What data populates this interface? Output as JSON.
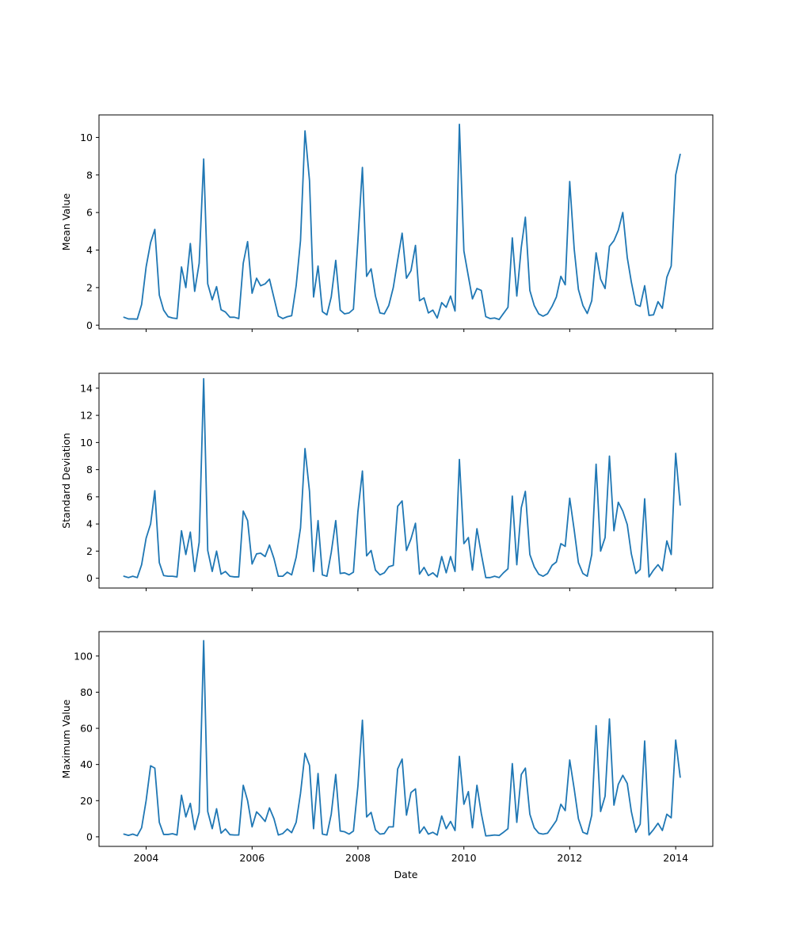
{
  "chart_data": [
    {
      "type": "line",
      "xlabel": "",
      "ylabel": "Mean Value",
      "ylim": [
        -0.2,
        11.2
      ],
      "xlim": [
        "2003-02-10",
        "2014-09-14"
      ],
      "yticks": [
        0,
        2,
        4,
        6,
        8,
        10
      ],
      "show_xtick_labels": false,
      "color": "#1f77b4",
      "x": [
        "2003-08-01",
        "2003-09-01",
        "2003-10-01",
        "2003-11-01",
        "2003-12-01",
        "2004-01-01",
        "2004-02-01",
        "2004-03-01",
        "2004-04-01",
        "2004-05-01",
        "2004-06-01",
        "2004-07-01",
        "2004-08-01",
        "2004-09-01",
        "2004-10-01",
        "2004-11-01",
        "2004-12-01",
        "2005-01-01",
        "2005-02-01",
        "2005-03-01",
        "2005-04-01",
        "2005-05-01",
        "2005-06-01",
        "2005-07-01",
        "2005-08-01",
        "2005-09-01",
        "2005-10-01",
        "2005-11-01",
        "2005-12-01",
        "2006-01-01",
        "2006-02-01",
        "2006-03-01",
        "2006-04-01",
        "2006-05-01",
        "2006-06-01",
        "2006-07-01",
        "2006-08-01",
        "2006-09-01",
        "2006-10-01",
        "2006-11-01",
        "2006-12-01",
        "2007-01-01",
        "2007-02-01",
        "2007-03-01",
        "2007-04-01",
        "2007-05-01",
        "2007-06-01",
        "2007-07-01",
        "2007-08-01",
        "2007-09-01",
        "2007-10-01",
        "2007-11-01",
        "2007-12-01",
        "2008-01-01",
        "2008-02-01",
        "2008-03-01",
        "2008-04-01",
        "2008-05-01",
        "2008-06-01",
        "2008-07-01",
        "2008-08-01",
        "2008-09-01",
        "2008-10-01",
        "2008-11-01",
        "2008-12-01",
        "2009-01-01",
        "2009-02-01",
        "2009-03-01",
        "2009-04-01",
        "2009-05-01",
        "2009-06-01",
        "2009-07-01",
        "2009-08-01",
        "2009-09-01",
        "2009-10-01",
        "2009-11-01",
        "2009-12-01",
        "2010-01-01",
        "2010-02-01",
        "2010-03-01",
        "2010-04-01",
        "2010-05-01",
        "2010-06-01",
        "2010-07-01",
        "2010-08-01",
        "2010-09-01",
        "2010-10-01",
        "2010-11-01",
        "2010-12-01",
        "2011-01-01",
        "2011-02-01",
        "2011-03-01",
        "2011-04-01",
        "2011-05-01",
        "2011-06-01",
        "2011-07-01",
        "2011-08-01",
        "2011-09-01",
        "2011-10-01",
        "2011-11-01",
        "2011-12-01",
        "2012-01-01",
        "2012-02-01",
        "2012-03-01",
        "2012-04-01",
        "2012-05-01",
        "2012-06-01",
        "2012-07-01",
        "2012-08-01",
        "2012-09-01",
        "2012-10-01",
        "2012-11-01",
        "2012-12-01",
        "2013-01-01",
        "2013-02-01",
        "2013-03-01",
        "2013-04-01",
        "2013-05-01",
        "2013-06-01",
        "2013-07-01",
        "2013-08-01",
        "2013-09-01",
        "2013-10-01",
        "2013-11-01",
        "2013-12-01",
        "2014-01-01",
        "2014-02-01"
      ],
      "y": [
        0.42,
        0.33,
        0.33,
        0.32,
        1.1,
        3.1,
        4.4,
        5.1,
        1.6,
        0.8,
        0.45,
        0.38,
        0.35,
        3.1,
        2.0,
        4.35,
        1.8,
        3.3,
        8.85,
        2.2,
        1.35,
        2.05,
        0.82,
        0.7,
        0.42,
        0.42,
        0.35,
        3.3,
        4.45,
        1.7,
        2.5,
        2.1,
        2.2,
        2.45,
        1.45,
        0.48,
        0.35,
        0.45,
        0.5,
        2.1,
        4.5,
        10.35,
        7.7,
        1.5,
        3.15,
        0.72,
        0.55,
        1.5,
        3.45,
        0.8,
        0.6,
        0.65,
        0.85,
        4.5,
        8.4,
        2.6,
        3.0,
        1.55,
        0.65,
        0.6,
        1.05,
        2.0,
        3.45,
        4.9,
        2.5,
        2.9,
        4.25,
        1.3,
        1.45,
        0.65,
        0.8,
        0.38,
        1.2,
        0.95,
        1.55,
        0.75,
        10.7,
        3.95,
        2.6,
        1.4,
        1.95,
        1.85,
        0.45,
        0.35,
        0.38,
        0.3,
        0.62,
        0.95,
        4.65,
        1.55,
        4.15,
        5.75,
        1.85,
        1.05,
        0.6,
        0.48,
        0.6,
        1.0,
        1.5,
        2.6,
        2.15,
        7.65,
        4.05,
        1.9,
        1.05,
        0.62,
        1.3,
        3.85,
        2.45,
        1.95,
        4.2,
        4.5,
        5.05,
        6.0,
        3.6,
        2.3,
        1.1,
        1.0,
        2.1,
        0.52,
        0.55,
        1.25,
        0.9,
        2.55,
        3.15,
        8.0,
        9.1
      ]
    },
    {
      "type": "line",
      "xlabel": "",
      "ylabel": "Standard Deviation",
      "ylim": [
        -0.72,
        15.1
      ],
      "xlim": [
        "2003-02-10",
        "2014-09-14"
      ],
      "yticks": [
        0,
        2,
        4,
        6,
        8,
        10,
        12,
        14
      ],
      "show_xtick_labels": false,
      "color": "#1f77b4",
      "x": [
        "2003-08-01",
        "2003-09-01",
        "2003-10-01",
        "2003-11-01",
        "2003-12-01",
        "2004-01-01",
        "2004-02-01",
        "2004-03-01",
        "2004-04-01",
        "2004-05-01",
        "2004-06-01",
        "2004-07-01",
        "2004-08-01",
        "2004-09-01",
        "2004-10-01",
        "2004-11-01",
        "2004-12-01",
        "2005-01-01",
        "2005-02-01",
        "2005-03-01",
        "2005-04-01",
        "2005-05-01",
        "2005-06-01",
        "2005-07-01",
        "2005-08-01",
        "2005-09-01",
        "2005-10-01",
        "2005-11-01",
        "2005-12-01",
        "2006-01-01",
        "2006-02-01",
        "2006-03-01",
        "2006-04-01",
        "2006-05-01",
        "2006-06-01",
        "2006-07-01",
        "2006-08-01",
        "2006-09-01",
        "2006-10-01",
        "2006-11-01",
        "2006-12-01",
        "2007-01-01",
        "2007-02-01",
        "2007-03-01",
        "2007-04-01",
        "2007-05-01",
        "2007-06-01",
        "2007-07-01",
        "2007-08-01",
        "2007-09-01",
        "2007-10-01",
        "2007-11-01",
        "2007-12-01",
        "2008-01-01",
        "2008-02-01",
        "2008-03-01",
        "2008-04-01",
        "2008-05-01",
        "2008-06-01",
        "2008-07-01",
        "2008-08-01",
        "2008-09-01",
        "2008-10-01",
        "2008-11-01",
        "2008-12-01",
        "2009-01-01",
        "2009-02-01",
        "2009-03-01",
        "2009-04-01",
        "2009-05-01",
        "2009-06-01",
        "2009-07-01",
        "2009-08-01",
        "2009-09-01",
        "2009-10-01",
        "2009-11-01",
        "2009-12-01",
        "2010-01-01",
        "2010-02-01",
        "2010-03-01",
        "2010-04-01",
        "2010-05-01",
        "2010-06-01",
        "2010-07-01",
        "2010-08-01",
        "2010-09-01",
        "2010-10-01",
        "2010-11-01",
        "2010-12-01",
        "2011-01-01",
        "2011-02-01",
        "2011-03-01",
        "2011-04-01",
        "2011-05-01",
        "2011-06-01",
        "2011-07-01",
        "2011-08-01",
        "2011-09-01",
        "2011-10-01",
        "2011-11-01",
        "2011-12-01",
        "2012-01-01",
        "2012-02-01",
        "2012-03-01",
        "2012-04-01",
        "2012-05-01",
        "2012-06-01",
        "2012-07-01",
        "2012-08-01",
        "2012-09-01",
        "2012-10-01",
        "2012-11-01",
        "2012-12-01",
        "2013-01-01",
        "2013-02-01",
        "2013-03-01",
        "2013-04-01",
        "2013-05-01",
        "2013-06-01",
        "2013-07-01",
        "2013-08-01",
        "2013-09-01",
        "2013-10-01",
        "2013-11-01",
        "2013-12-01",
        "2014-01-01",
        "2014-02-01"
      ],
      "y": [
        0.15,
        0.05,
        0.15,
        0.05,
        1.0,
        2.95,
        4.0,
        6.45,
        1.15,
        0.2,
        0.15,
        0.15,
        0.1,
        3.5,
        1.75,
        3.4,
        0.5,
        2.65,
        14.7,
        2.05,
        0.5,
        2.0,
        0.3,
        0.5,
        0.15,
        0.1,
        0.1,
        4.95,
        4.25,
        1.05,
        1.8,
        1.85,
        1.6,
        2.45,
        1.45,
        0.15,
        0.15,
        0.45,
        0.25,
        1.55,
        3.7,
        9.55,
        6.4,
        0.5,
        4.25,
        0.25,
        0.15,
        1.9,
        4.25,
        0.35,
        0.4,
        0.25,
        0.45,
        4.9,
        7.9,
        1.65,
        2.05,
        0.6,
        0.25,
        0.4,
        0.85,
        0.95,
        5.3,
        5.7,
        2.05,
        2.9,
        4.05,
        0.3,
        0.8,
        0.2,
        0.4,
        0.1,
        1.6,
        0.4,
        1.6,
        0.5,
        8.75,
        2.55,
        3.0,
        0.6,
        3.65,
        1.8,
        0.05,
        0.05,
        0.15,
        0.05,
        0.4,
        0.7,
        6.05,
        1.0,
        5.2,
        6.4,
        1.75,
        0.85,
        0.3,
        0.15,
        0.35,
        0.95,
        1.2,
        2.55,
        2.35,
        5.9,
        3.55,
        1.15,
        0.35,
        0.15,
        1.75,
        8.4,
        2.0,
        3.0,
        9.0,
        3.5,
        5.6,
        4.95,
        3.95,
        1.8,
        0.35,
        0.65,
        5.85,
        0.1,
        0.6,
        1.0,
        0.55,
        2.75,
        1.75,
        9.2,
        5.4
      ]
    },
    {
      "type": "line",
      "xlabel": "Date",
      "ylabel": "Maximum Value",
      "ylim": [
        -5.3,
        113.5
      ],
      "xlim": [
        "2003-02-10",
        "2014-09-14"
      ],
      "yticks": [
        0,
        20,
        40,
        60,
        80,
        100
      ],
      "xticks": [
        "2004-01-01",
        "2006-01-01",
        "2008-01-01",
        "2010-01-01",
        "2012-01-01",
        "2014-01-01"
      ],
      "xtick_labels": [
        "2004",
        "2006",
        "2008",
        "2010",
        "2012",
        "2014"
      ],
      "show_xtick_labels": true,
      "color": "#1f77b4",
      "x": [
        "2003-08-01",
        "2003-09-01",
        "2003-10-01",
        "2003-11-01",
        "2003-12-01",
        "2004-01-01",
        "2004-02-01",
        "2004-03-01",
        "2004-04-01",
        "2004-05-01",
        "2004-06-01",
        "2004-07-01",
        "2004-08-01",
        "2004-09-01",
        "2004-10-01",
        "2004-11-01",
        "2004-12-01",
        "2005-01-01",
        "2005-02-01",
        "2005-03-01",
        "2005-04-01",
        "2005-05-01",
        "2005-06-01",
        "2005-07-01",
        "2005-08-01",
        "2005-09-01",
        "2005-10-01",
        "2005-11-01",
        "2005-12-01",
        "2006-01-01",
        "2006-02-01",
        "2006-03-01",
        "2006-04-01",
        "2006-05-01",
        "2006-06-01",
        "2006-07-01",
        "2006-08-01",
        "2006-09-01",
        "2006-10-01",
        "2006-11-01",
        "2006-12-01",
        "2007-01-01",
        "2007-02-01",
        "2007-03-01",
        "2007-04-01",
        "2007-05-01",
        "2007-06-01",
        "2007-07-01",
        "2007-08-01",
        "2007-09-01",
        "2007-10-01",
        "2007-11-01",
        "2007-12-01",
        "2008-01-01",
        "2008-02-01",
        "2008-03-01",
        "2008-04-01",
        "2008-05-01",
        "2008-06-01",
        "2008-07-01",
        "2008-08-01",
        "2008-09-01",
        "2008-10-01",
        "2008-11-01",
        "2008-12-01",
        "2009-01-01",
        "2009-02-01",
        "2009-03-01",
        "2009-04-01",
        "2009-05-01",
        "2009-06-01",
        "2009-07-01",
        "2009-08-01",
        "2009-09-01",
        "2009-10-01",
        "2009-11-01",
        "2009-12-01",
        "2010-01-01",
        "2010-02-01",
        "2010-03-01",
        "2010-04-01",
        "2010-05-01",
        "2010-06-01",
        "2010-07-01",
        "2010-08-01",
        "2010-09-01",
        "2010-10-01",
        "2010-11-01",
        "2010-12-01",
        "2011-01-01",
        "2011-02-01",
        "2011-03-01",
        "2011-04-01",
        "2011-05-01",
        "2011-06-01",
        "2011-07-01",
        "2011-08-01",
        "2011-09-01",
        "2011-10-01",
        "2011-11-01",
        "2011-12-01",
        "2012-01-01",
        "2012-02-01",
        "2012-03-01",
        "2012-04-01",
        "2012-05-01",
        "2012-06-01",
        "2012-07-01",
        "2012-08-01",
        "2012-09-01",
        "2012-10-01",
        "2012-11-01",
        "2012-12-01",
        "2013-01-01",
        "2013-02-01",
        "2013-03-01",
        "2013-04-01",
        "2013-05-01",
        "2013-06-01",
        "2013-07-01",
        "2013-08-01",
        "2013-09-01",
        "2013-10-01",
        "2013-11-01",
        "2013-12-01",
        "2014-01-01",
        "2014-02-01"
      ],
      "y": [
        1.5,
        0.8,
        1.5,
        0.6,
        5.0,
        20.0,
        39.3,
        38.0,
        8.0,
        1.3,
        1.3,
        1.7,
        1.0,
        23.0,
        11.0,
        18.5,
        4.0,
        13.5,
        108.5,
        14.0,
        4.5,
        15.5,
        2.0,
        4.3,
        1.2,
        1.0,
        1.0,
        28.5,
        20.0,
        5.5,
        13.8,
        11.5,
        8.5,
        16.0,
        10.0,
        1.0,
        1.8,
        4.3,
        2.3,
        8.0,
        24.0,
        46.2,
        39.5,
        4.5,
        35.0,
        1.5,
        1.0,
        12.5,
        34.5,
        3.2,
        2.8,
        1.5,
        3.2,
        28.0,
        64.5,
        11.0,
        13.5,
        3.8,
        1.5,
        1.8,
        5.5,
        5.5,
        37.5,
        43.0,
        12.0,
        24.5,
        26.5,
        2.0,
        5.5,
        1.5,
        2.5,
        1.0,
        11.5,
        4.5,
        8.5,
        3.5,
        44.5,
        18.0,
        25.0,
        5.0,
        28.5,
        13.0,
        0.5,
        0.7,
        1.0,
        0.8,
        2.5,
        4.5,
        40.5,
        8.0,
        34.5,
        38.0,
        12.5,
        5.0,
        2.0,
        1.5,
        2.0,
        5.5,
        9.0,
        18.0,
        14.5,
        42.5,
        26.5,
        10.0,
        2.5,
        1.5,
        12.0,
        61.5,
        14.0,
        22.5,
        65.2,
        17.5,
        29.0,
        34.0,
        29.5,
        14.0,
        2.5,
        7.0,
        53.0,
        1.0,
        4.0,
        7.5,
        3.5,
        12.5,
        10.5,
        53.5,
        33.0
      ]
    }
  ]
}
